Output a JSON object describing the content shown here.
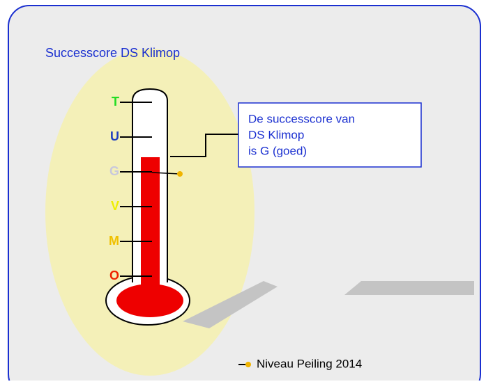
{
  "title": "Successcore DS Klimop",
  "levels": [
    {
      "label": "T",
      "color": "#22dd22"
    },
    {
      "label": "U",
      "color": "#1f3fbf"
    },
    {
      "label": "G",
      "color": "#c8c8dc"
    },
    {
      "label": "V",
      "color": "#eeee00"
    },
    {
      "label": "M",
      "color": "#f0c000"
    },
    {
      "label": "O",
      "color": "#ee2200"
    }
  ],
  "callout": [
    "De successcore van",
    "DS Klimop",
    "is G (goed)"
  ],
  "legend": "Niveau Peiling 2014"
}
